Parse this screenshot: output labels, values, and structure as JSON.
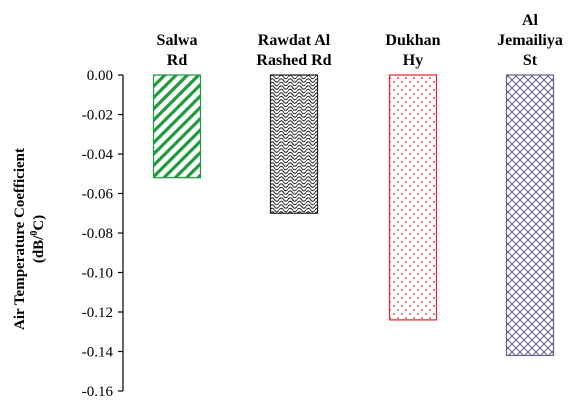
{
  "chart_data": {
    "type": "bar",
    "categories": [
      [
        "Salwa",
        "Rd"
      ],
      [
        "Rawdat Al",
        "Rashed Rd"
      ],
      [
        "Dukhan",
        "Hy"
      ],
      [
        "Al",
        "Jemailiya",
        "St"
      ]
    ],
    "values": [
      -0.052,
      -0.07,
      -0.124,
      -0.142
    ],
    "ylabel_line1": "Air Temperature Coefficient",
    "ylabel_line2": "(dB/",
    "ylabel_sup": "0",
    "ylabel_line2_end": "C)",
    "ylim": [
      -0.16,
      0.0
    ],
    "yticks": [
      "0.00",
      "-0.02",
      "-0.04",
      "-0.06",
      "-0.08",
      "-0.10",
      "-0.12",
      "-0.14",
      "-0.16"
    ],
    "colors": [
      "#1e9a3c",
      "#222222",
      "#e8202a",
      "#6a5a8e"
    ],
    "patterns": [
      "diagonal-stripes",
      "scales",
      "dots",
      "crosshatch"
    ],
    "grid": false
  }
}
